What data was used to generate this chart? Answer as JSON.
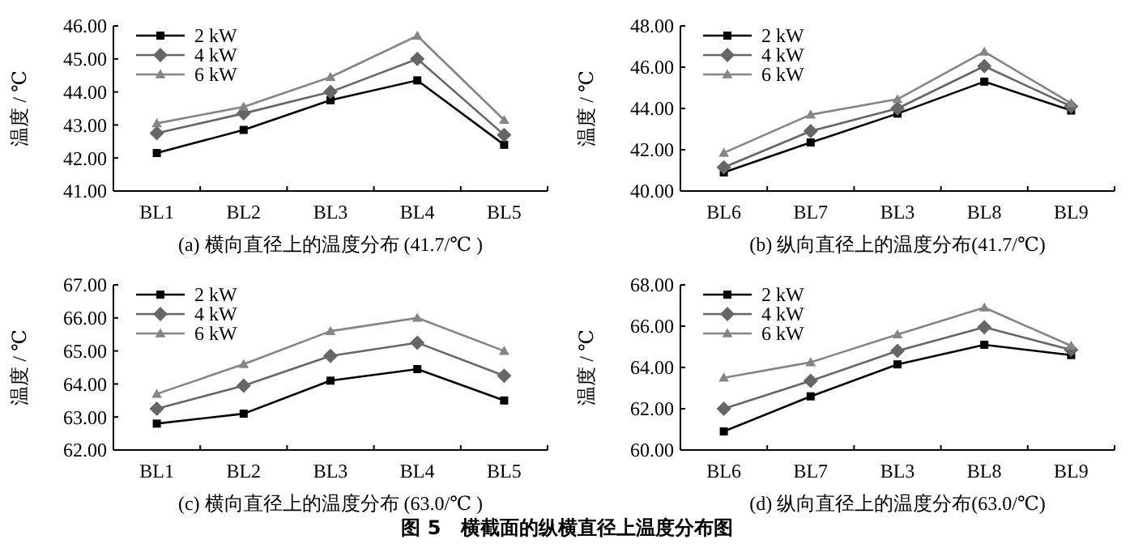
{
  "chart_data": [
    {
      "type": "line",
      "title": "(a) 横向直径上的温度分布 (41.7/℃ )",
      "ylabel": "温度 / ℃",
      "categories": [
        "BL1",
        "BL2",
        "BL3",
        "BL4",
        "BL5"
      ],
      "ylim": [
        41,
        46
      ],
      "yticks": [
        {
          "value": 41,
          "label": "41.00"
        },
        {
          "value": 42,
          "label": "42.00"
        },
        {
          "value": 43,
          "label": "43.00"
        },
        {
          "value": 44,
          "label": "44.00"
        },
        {
          "value": 45,
          "label": "45.00"
        },
        {
          "value": 46,
          "label": "46.00"
        }
      ],
      "legend": "top left",
      "grid": false,
      "series": [
        {
          "name": "2 kW",
          "color": "#000000",
          "marker": "square",
          "values": [
            42.15,
            42.85,
            43.75,
            44.35,
            42.4
          ]
        },
        {
          "name": "4 kW",
          "color": "#666666",
          "marker": "diamond",
          "values": [
            42.75,
            43.35,
            44.0,
            45.0,
            42.7
          ]
        },
        {
          "name": "6 kW",
          "color": "#858585",
          "marker": "triangle",
          "values": [
            43.05,
            43.55,
            44.45,
            45.7,
            43.15
          ]
        }
      ]
    },
    {
      "type": "line",
      "title": "(b) 纵向直径上的温度分布(41.7/℃)",
      "ylabel": "温度 / ℃",
      "categories": [
        "BL6",
        "BL7",
        "BL3",
        "BL8",
        "BL9"
      ],
      "ylim": [
        40,
        48
      ],
      "yticks": [
        {
          "value": 40,
          "label": "40.00"
        },
        {
          "value": 42,
          "label": "42.00"
        },
        {
          "value": 44,
          "label": "44.00"
        },
        {
          "value": 46,
          "label": "46.00"
        },
        {
          "value": 48,
          "label": "48.00"
        }
      ],
      "legend": "top left",
      "grid": false,
      "series": [
        {
          "name": "2 kW",
          "color": "#000000",
          "marker": "square",
          "values": [
            40.9,
            42.35,
            43.75,
            45.3,
            43.9
          ]
        },
        {
          "name": "4 kW",
          "color": "#666666",
          "marker": "diamond",
          "values": [
            41.15,
            42.9,
            44.0,
            46.05,
            44.1
          ]
        },
        {
          "name": "6 kW",
          "color": "#858585",
          "marker": "triangle",
          "values": [
            41.85,
            43.7,
            44.45,
            46.75,
            44.25
          ]
        }
      ]
    },
    {
      "type": "line",
      "title": "(c) 横向直径上的温度分布 (63.0/℃ )",
      "ylabel": "温度 / ℃",
      "categories": [
        "BL1",
        "BL2",
        "BL3",
        "BL4",
        "BL5"
      ],
      "ylim": [
        62,
        67
      ],
      "yticks": [
        {
          "value": 62,
          "label": "62.00"
        },
        {
          "value": 63,
          "label": "63.00"
        },
        {
          "value": 64,
          "label": "64.00"
        },
        {
          "value": 65,
          "label": "65.00"
        },
        {
          "value": 66,
          "label": "66.00"
        },
        {
          "value": 67,
          "label": "67.00"
        }
      ],
      "legend": "top left",
      "grid": false,
      "series": [
        {
          "name": "2 kW",
          "color": "#000000",
          "marker": "square",
          "values": [
            62.8,
            63.1,
            64.1,
            64.45,
            63.5
          ]
        },
        {
          "name": "4 kW",
          "color": "#666666",
          "marker": "diamond",
          "values": [
            63.25,
            63.95,
            64.85,
            65.25,
            64.25
          ]
        },
        {
          "name": "6 kW",
          "color": "#858585",
          "marker": "triangle",
          "values": [
            63.7,
            64.6,
            65.6,
            66.0,
            65.0
          ]
        }
      ]
    },
    {
      "type": "line",
      "title": "(d) 纵向直径上的温度分布(63.0/℃)",
      "ylabel": "温度 / ℃",
      "categories": [
        "BL6",
        "BL7",
        "BL3",
        "BL8",
        "BL9"
      ],
      "ylim": [
        60,
        68
      ],
      "yticks": [
        {
          "value": 60,
          "label": "60.00"
        },
        {
          "value": 62,
          "label": "62.00"
        },
        {
          "value": 64,
          "label": "64.00"
        },
        {
          "value": 66,
          "label": "66.00"
        },
        {
          "value": 68,
          "label": "68.00"
        }
      ],
      "legend": "top left",
      "grid": false,
      "annotations": [
        "图 5　横截面的纵横直径上温度分布图"
      ],
      "series": [
        {
          "name": "2 kW",
          "color": "#000000",
          "marker": "square",
          "values": [
            60.9,
            62.6,
            64.15,
            65.1,
            64.6
          ]
        },
        {
          "name": "4 kW",
          "color": "#666666",
          "marker": "diamond",
          "values": [
            62.0,
            63.35,
            64.8,
            65.95,
            64.85
          ]
        },
        {
          "name": "6 kW",
          "color": "#858585",
          "marker": "triangle",
          "values": [
            63.5,
            64.25,
            65.6,
            66.9,
            65.05
          ]
        }
      ]
    }
  ]
}
